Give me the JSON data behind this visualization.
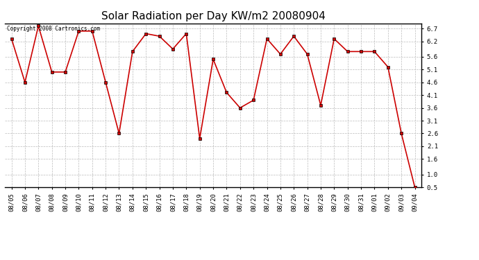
{
  "title": "Solar Radiation per Day KW/m2 20080904",
  "copyright_text": "Copyright 2008 Cartronics.com",
  "dates": [
    "08/05",
    "08/06",
    "08/07",
    "08/08",
    "08/09",
    "08/10",
    "08/11",
    "08/12",
    "08/13",
    "08/14",
    "08/15",
    "08/16",
    "08/17",
    "08/18",
    "08/19",
    "08/20",
    "08/21",
    "08/22",
    "08/23",
    "08/24",
    "08/25",
    "08/26",
    "08/27",
    "08/28",
    "08/29",
    "08/30",
    "08/31",
    "09/01",
    "09/02",
    "09/03",
    "09/04"
  ],
  "values": [
    6.3,
    4.6,
    6.8,
    5.0,
    5.0,
    6.6,
    6.6,
    4.6,
    2.6,
    5.8,
    6.5,
    6.4,
    5.9,
    6.5,
    2.4,
    5.5,
    4.2,
    3.6,
    3.9,
    6.3,
    5.7,
    6.4,
    5.7,
    3.7,
    6.3,
    5.8,
    5.8,
    5.8,
    5.2,
    2.6,
    0.5
  ],
  "ylim_min": 0.5,
  "ylim_max": 6.9,
  "yticks": [
    0.5,
    1.0,
    1.6,
    2.1,
    2.6,
    3.1,
    3.6,
    4.1,
    4.6,
    5.1,
    5.6,
    6.2,
    6.7
  ],
  "line_color": "#cc0000",
  "background_color": "#ffffff",
  "grid_color": "#bbbbbb",
  "title_fontsize": 11,
  "tick_fontsize": 6.5,
  "copyright_fontsize": 5.5
}
